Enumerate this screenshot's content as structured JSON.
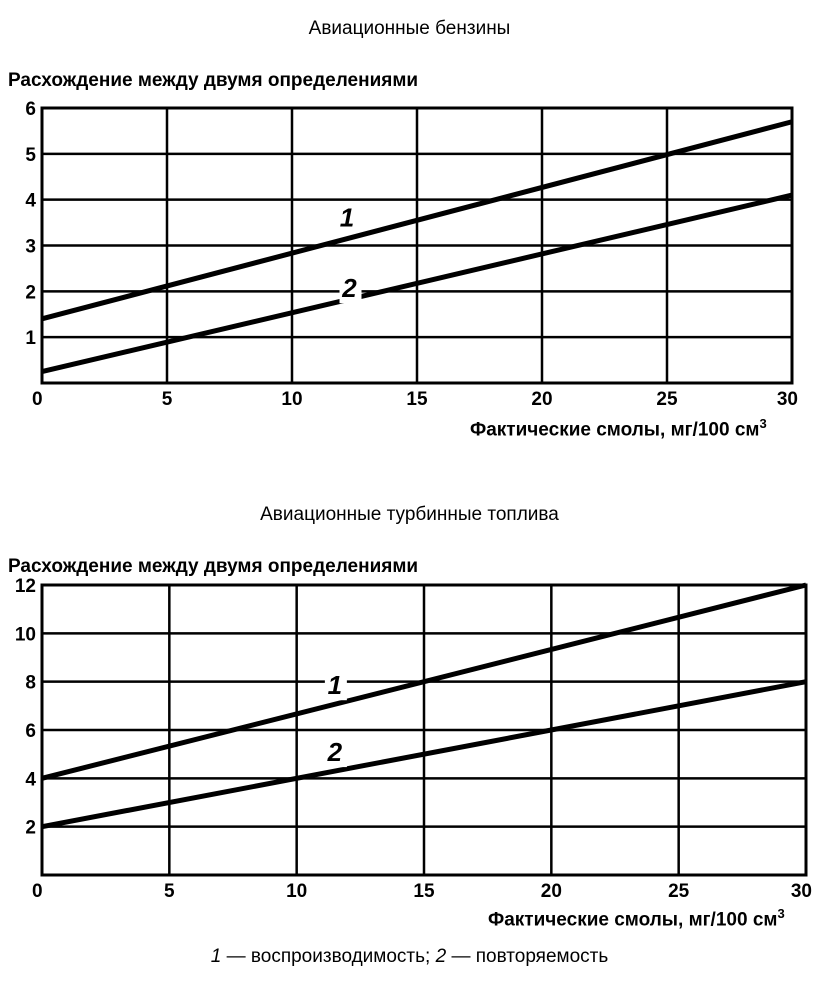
{
  "chart_data": [
    {
      "type": "line",
      "title": "Авиационные бензины",
      "ylabel": "Расхождение между двумя определениями",
      "xlabel": "Фактические смолы, мг/100 см",
      "xlabel_sup": "3",
      "xlim": [
        0,
        30
      ],
      "ylim": [
        0,
        6
      ],
      "xticks": [
        "0",
        "5",
        "10",
        "15",
        "20",
        "25",
        "30"
      ],
      "yticks": [
        "1",
        "2",
        "3",
        "4",
        "5",
        "6"
      ],
      "grid": true,
      "series": [
        {
          "name": "1",
          "x": [
            0,
            30
          ],
          "y": [
            1.4,
            5.7
          ]
        },
        {
          "name": "2",
          "x": [
            0,
            30
          ],
          "y": [
            0.25,
            4.1
          ]
        }
      ]
    },
    {
      "type": "line",
      "title": "Авиационные турбинные топлива",
      "ylabel": "Расхождение между двумя определениями",
      "xlabel": "Фактические смолы, мг/100 см",
      "xlabel_sup": "3",
      "xlim": [
        0,
        30
      ],
      "ylim": [
        0,
        12
      ],
      "xticks": [
        "0",
        "5",
        "10",
        "15",
        "20",
        "25",
        "30"
      ],
      "yticks": [
        "2",
        "4",
        "6",
        "8",
        "10",
        "12"
      ],
      "grid": true,
      "series": [
        {
          "name": "1",
          "x": [
            0,
            30
          ],
          "y": [
            4,
            12
          ]
        },
        {
          "name": "2",
          "x": [
            0,
            30
          ],
          "y": [
            2,
            8
          ]
        }
      ]
    }
  ],
  "caption": {
    "n1": "1",
    "t1": " — воспроизводимость; ",
    "n2": "2",
    "t2": " — повторяемость"
  }
}
